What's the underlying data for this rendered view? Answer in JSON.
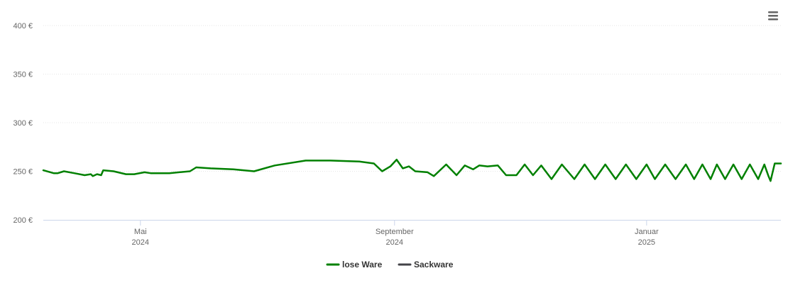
{
  "chart_data": {
    "type": "line",
    "title": "",
    "xlabel": "",
    "ylabel": "",
    "y_unit": "€",
    "ylim": [
      200,
      400
    ],
    "y_ticks": [
      200,
      250,
      300,
      350,
      400
    ],
    "y_tick_labels": [
      "200 €",
      "250 €",
      "300 €",
      "350 €",
      "400 €"
    ],
    "x_range": [
      "2024-03-15",
      "2025-03-07"
    ],
    "x_ticks": [
      {
        "date": "2024-05-01",
        "line1": "Mai",
        "line2": "2024"
      },
      {
        "date": "2024-09-01",
        "line1": "September",
        "line2": "2024"
      },
      {
        "date": "2025-01-01",
        "line1": "Januar",
        "line2": "2025"
      }
    ],
    "grid": true,
    "legend_position": "bottom-center",
    "series": [
      {
        "name": "lose Ware",
        "color": "#008000",
        "points": [
          [
            "2024-03-15",
            251
          ],
          [
            "2024-03-20",
            248
          ],
          [
            "2024-03-22",
            248
          ],
          [
            "2024-03-25",
            250
          ],
          [
            "2024-03-30",
            248
          ],
          [
            "2024-04-04",
            246
          ],
          [
            "2024-04-07",
            247
          ],
          [
            "2024-04-08",
            245
          ],
          [
            "2024-04-10",
            247
          ],
          [
            "2024-04-12",
            246
          ],
          [
            "2024-04-13",
            251
          ],
          [
            "2024-04-18",
            250
          ],
          [
            "2024-04-24",
            247
          ],
          [
            "2024-04-28",
            247
          ],
          [
            "2024-05-03",
            249
          ],
          [
            "2024-05-06",
            248
          ],
          [
            "2024-05-15",
            248
          ],
          [
            "2024-05-25",
            250
          ],
          [
            "2024-05-28",
            254
          ],
          [
            "2024-06-04",
            253
          ],
          [
            "2024-06-15",
            252
          ],
          [
            "2024-06-25",
            250
          ],
          [
            "2024-07-05",
            256
          ],
          [
            "2024-07-20",
            261
          ],
          [
            "2024-08-01",
            261
          ],
          [
            "2024-08-15",
            260
          ],
          [
            "2024-08-22",
            258
          ],
          [
            "2024-08-26",
            250
          ],
          [
            "2024-08-30",
            255
          ],
          [
            "2024-09-02",
            262
          ],
          [
            "2024-09-05",
            253
          ],
          [
            "2024-09-08",
            255
          ],
          [
            "2024-09-11",
            250
          ],
          [
            "2024-09-17",
            249
          ],
          [
            "2024-09-20",
            245
          ],
          [
            "2024-09-26",
            257
          ],
          [
            "2024-10-01",
            246
          ],
          [
            "2024-10-05",
            256
          ],
          [
            "2024-10-09",
            252
          ],
          [
            "2024-10-12",
            256
          ],
          [
            "2024-10-16",
            255
          ],
          [
            "2024-10-21",
            256
          ],
          [
            "2024-10-25",
            246
          ],
          [
            "2024-10-30",
            246
          ],
          [
            "2024-11-03",
            257
          ],
          [
            "2024-11-07",
            246
          ],
          [
            "2024-11-11",
            256
          ],
          [
            "2024-11-16",
            242
          ],
          [
            "2024-11-21",
            257
          ],
          [
            "2024-11-27",
            242
          ],
          [
            "2024-12-02",
            257
          ],
          [
            "2024-12-07",
            242
          ],
          [
            "2024-12-12",
            257
          ],
          [
            "2024-12-17",
            242
          ],
          [
            "2024-12-22",
            257
          ],
          [
            "2024-12-27",
            242
          ],
          [
            "2025-01-01",
            257
          ],
          [
            "2025-01-05",
            242
          ],
          [
            "2025-01-10",
            257
          ],
          [
            "2025-01-15",
            242
          ],
          [
            "2025-01-20",
            257
          ],
          [
            "2025-01-24",
            242
          ],
          [
            "2025-01-28",
            257
          ],
          [
            "2025-02-01",
            242
          ],
          [
            "2025-02-04",
            257
          ],
          [
            "2025-02-08",
            242
          ],
          [
            "2025-02-12",
            257
          ],
          [
            "2025-02-16",
            242
          ],
          [
            "2025-02-20",
            257
          ],
          [
            "2025-02-24",
            242
          ],
          [
            "2025-02-27",
            257
          ],
          [
            "2025-03-01",
            245
          ],
          [
            "2025-03-02",
            240
          ],
          [
            "2025-03-04",
            258
          ],
          [
            "2025-03-07",
            258
          ]
        ]
      },
      {
        "name": "Sackware",
        "color": "#434348",
        "points": []
      }
    ]
  },
  "legend": {
    "item1": "lose Ware",
    "item2": "Sackware"
  },
  "menu_icon": "hamburger-menu-icon"
}
